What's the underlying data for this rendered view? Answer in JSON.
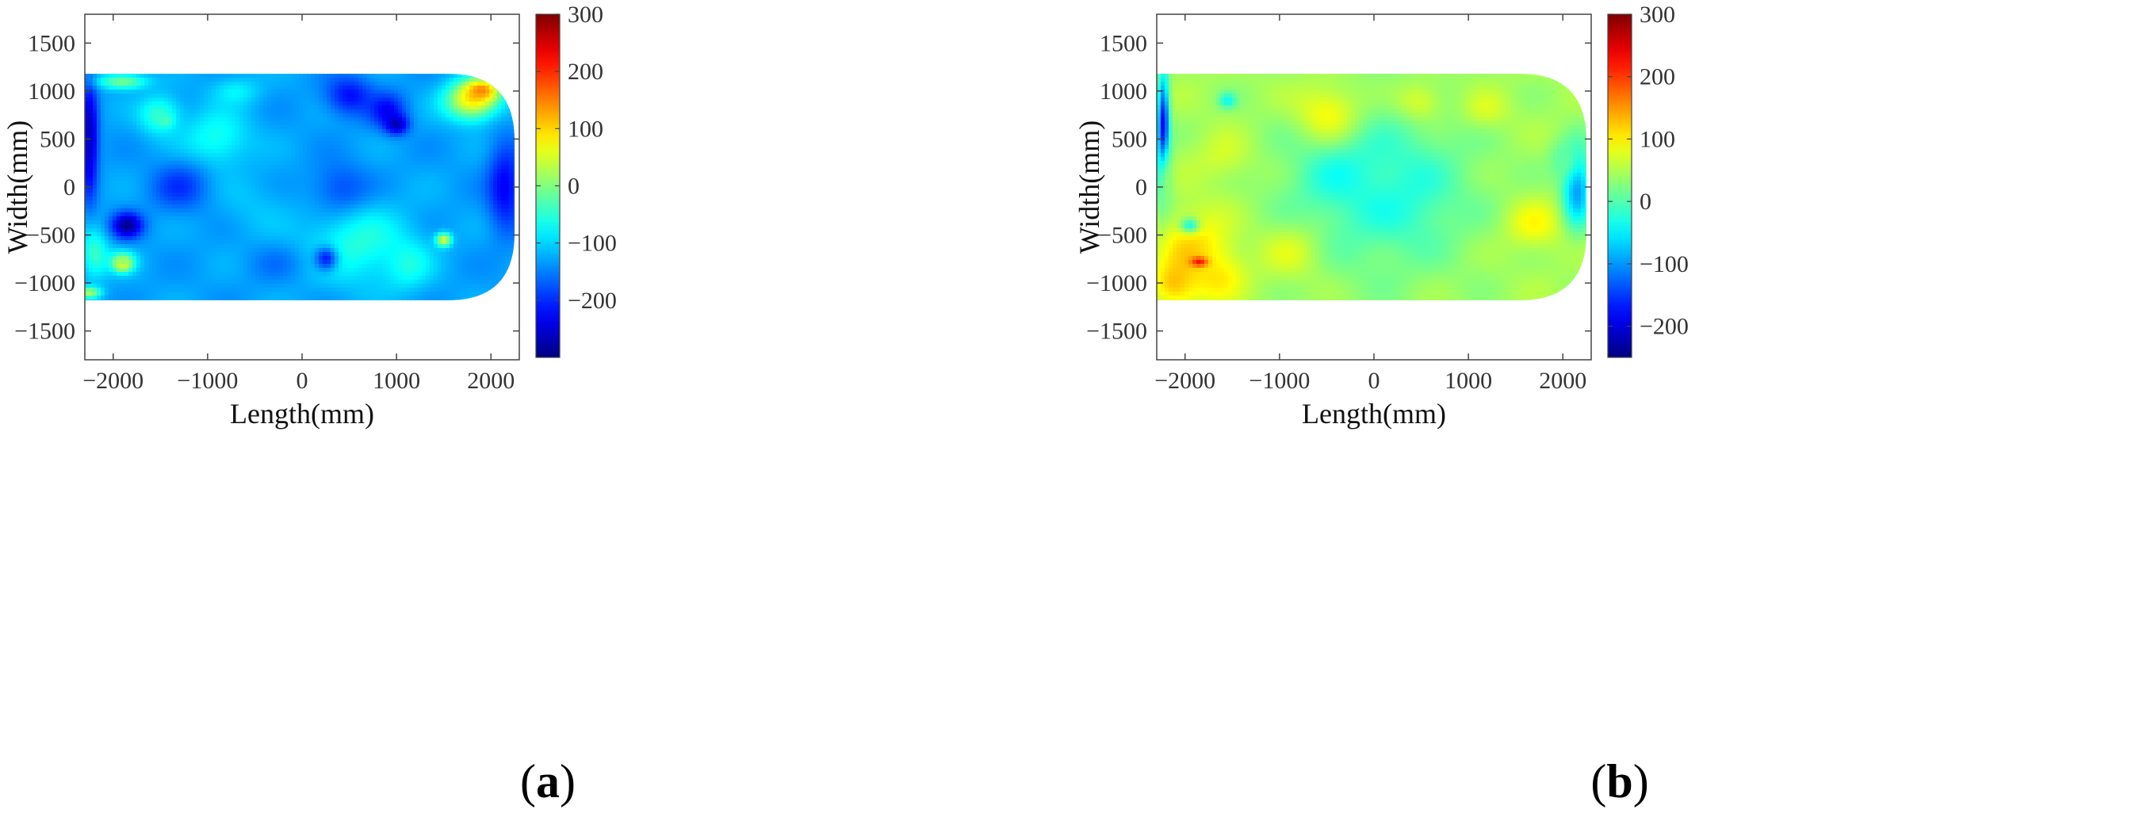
{
  "chart_data": [
    {
      "type": "heatmap",
      "panel_label": "(a)",
      "panel_letter": "a",
      "xlabel": "Length(mm)",
      "ylabel": "Width(mm)",
      "xlim": [
        -2300,
        2300
      ],
      "ylim": [
        -1800,
        1800
      ],
      "xticks": [
        -2000,
        -1000,
        0,
        1000,
        2000
      ],
      "yticks": [
        -1500,
        -1000,
        -500,
        0,
        500,
        1000,
        1500
      ],
      "xtick_labels": [
        "−2000",
        "−1000",
        "0",
        "1000",
        "2000"
      ],
      "ytick_labels": [
        "−1500",
        "−1000",
        "−500",
        "0",
        "500",
        "1000",
        "1500"
      ],
      "region": {
        "x_min": -2300,
        "x_max": 2250,
        "y_min": -1180,
        "y_max": 1180,
        "right_corner_radius": 700
      },
      "base_value": -130,
      "features": [
        {
          "x": -2250,
          "y": 500,
          "rx": 90,
          "ry": 600,
          "v": -270
        },
        {
          "x": -2200,
          "y": -700,
          "rx": 150,
          "ry": 250,
          "v": -40
        },
        {
          "x": -2250,
          "y": -1100,
          "rx": 120,
          "ry": 60,
          "v": 20
        },
        {
          "x": -1900,
          "y": -800,
          "rx": 70,
          "ry": 60,
          "v": 260
        },
        {
          "x": -1900,
          "y": -780,
          "rx": 140,
          "ry": 110,
          "v": 0
        },
        {
          "x": -1850,
          "y": -400,
          "rx": 160,
          "ry": 130,
          "v": -280
        },
        {
          "x": -1450,
          "y": 700,
          "rx": 70,
          "ry": 60,
          "v": 60
        },
        {
          "x": -1500,
          "y": 750,
          "rx": 220,
          "ry": 200,
          "v": -40
        },
        {
          "x": -1900,
          "y": 1100,
          "rx": 250,
          "ry": 80,
          "v": 0
        },
        {
          "x": -900,
          "y": 500,
          "rx": 350,
          "ry": 300,
          "v": -60
        },
        {
          "x": -700,
          "y": 1000,
          "rx": 250,
          "ry": 150,
          "v": -80
        },
        {
          "x": 500,
          "y": 950,
          "rx": 250,
          "ry": 200,
          "v": -220
        },
        {
          "x": 900,
          "y": 800,
          "rx": 200,
          "ry": 180,
          "v": -220
        },
        {
          "x": 1000,
          "y": 650,
          "rx": 120,
          "ry": 100,
          "v": -270
        },
        {
          "x": 1800,
          "y": 900,
          "rx": 280,
          "ry": 200,
          "v": 80
        },
        {
          "x": 1900,
          "y": 1000,
          "rx": 180,
          "ry": 120,
          "v": 150
        },
        {
          "x": 2150,
          "y": 0,
          "rx": 180,
          "ry": 450,
          "v": -230
        },
        {
          "x": 600,
          "y": -600,
          "rx": 550,
          "ry": 400,
          "v": -55
        },
        {
          "x": 1100,
          "y": -800,
          "rx": 250,
          "ry": 250,
          "v": -60
        },
        {
          "x": 1500,
          "y": -550,
          "rx": 80,
          "ry": 70,
          "v": 60
        },
        {
          "x": 250,
          "y": -750,
          "rx": 120,
          "ry": 120,
          "v": -220
        },
        {
          "x": -500,
          "y": -200,
          "rx": 400,
          "ry": 350,
          "v": -110
        },
        {
          "x": -1300,
          "y": 0,
          "rx": 300,
          "ry": 250,
          "v": -190
        },
        {
          "x": 400,
          "y": 0,
          "rx": 300,
          "ry": 250,
          "v": -180
        },
        {
          "x": -300,
          "y": -800,
          "rx": 300,
          "ry": 200,
          "v": -150
        }
      ],
      "colorbar": {
        "min": -300,
        "max": 300,
        "ticks": [
          300,
          200,
          100,
          0,
          -100,
          -200
        ],
        "tick_labels": [
          "300",
          "200",
          "100",
          "0",
          "−100",
          "−200"
        ]
      }
    },
    {
      "type": "heatmap",
      "panel_label": "(b)",
      "panel_letter": "b",
      "xlabel": "Length(mm)",
      "ylabel": "Width(mm)",
      "xlim": [
        -2300,
        2300
      ],
      "ylim": [
        -1800,
        1800
      ],
      "xticks": [
        -2000,
        -1000,
        0,
        1000,
        2000
      ],
      "yticks": [
        -1500,
        -1000,
        -500,
        0,
        500,
        1000,
        1500
      ],
      "xtick_labels": [
        "−2000",
        "−1000",
        "0",
        "1000",
        "2000"
      ],
      "ytick_labels": [
        "−1500",
        "−1000",
        "−500",
        "0",
        "500",
        "1000",
        "1500"
      ],
      "region": {
        "x_min": -2300,
        "x_max": 2250,
        "y_min": -1180,
        "y_max": 1180,
        "right_corner_radius": 700
      },
      "base_value": 45,
      "features": [
        {
          "x": 50,
          "y": 0,
          "rx": 1000,
          "ry": 900,
          "v": -20
        },
        {
          "x": -300,
          "y": 100,
          "rx": 400,
          "ry": 300,
          "v": -30
        },
        {
          "x": 300,
          "y": -100,
          "rx": 400,
          "ry": 350,
          "v": -25
        },
        {
          "x": -2230,
          "y": 500,
          "rx": 60,
          "ry": 600,
          "v": -240
        },
        {
          "x": -2200,
          "y": 0,
          "rx": 100,
          "ry": 500,
          "v": 20
        },
        {
          "x": -1900,
          "y": -700,
          "rx": 400,
          "ry": 450,
          "v": 115
        },
        {
          "x": -1700,
          "y": -900,
          "rx": 300,
          "ry": 250,
          "v": 105
        },
        {
          "x": -2100,
          "y": -1000,
          "rx": 200,
          "ry": 200,
          "v": 135
        },
        {
          "x": -1850,
          "y": -780,
          "rx": 90,
          "ry": 50,
          "v": 220
        },
        {
          "x": -1950,
          "y": -400,
          "rx": 100,
          "ry": 80,
          "v": -20
        },
        {
          "x": -500,
          "y": 800,
          "rx": 350,
          "ry": 300,
          "v": 90
        },
        {
          "x": 500,
          "y": 900,
          "rx": 250,
          "ry": 200,
          "v": 75
        },
        {
          "x": 1200,
          "y": 800,
          "rx": 250,
          "ry": 200,
          "v": 70
        },
        {
          "x": 1700,
          "y": -400,
          "rx": 300,
          "ry": 250,
          "v": 90
        },
        {
          "x": 2150,
          "y": 0,
          "rx": 150,
          "ry": 400,
          "v": -100
        },
        {
          "x": 2000,
          "y": 300,
          "rx": 150,
          "ry": 200,
          "v": 5
        },
        {
          "x": -1550,
          "y": 900,
          "rx": 90,
          "ry": 80,
          "v": -30
        },
        {
          "x": -1600,
          "y": 300,
          "rx": 300,
          "ry": 250,
          "v": 70
        },
        {
          "x": -900,
          "y": -700,
          "rx": 350,
          "ry": 300,
          "v": 70
        }
      ],
      "colorbar": {
        "min": -250,
        "max": 300,
        "ticks": [
          300,
          200,
          100,
          0,
          -100,
          -200
        ],
        "tick_labels": [
          "300",
          "200",
          "100",
          "0",
          "−100",
          "−200"
        ]
      }
    }
  ]
}
